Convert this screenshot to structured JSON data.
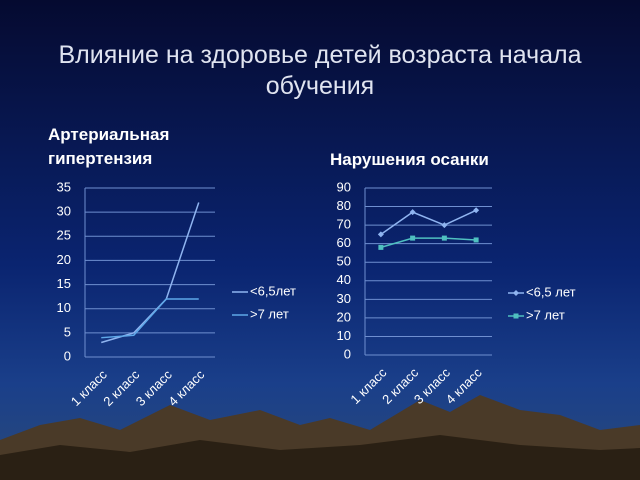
{
  "title": "Влияние на здоровье детей  возраста начала обучения",
  "chart_data": [
    {
      "type": "line",
      "title": "Артериальная гипертензия",
      "categories": [
        "1 класс",
        "2 класс",
        "3 класс",
        "4 класс"
      ],
      "series": [
        {
          "name": "<6,5лет",
          "color": "#8fb4f0",
          "values": [
            3,
            5,
            12,
            32
          ]
        },
        {
          "name": ">7 лет",
          "color": "#5fa8e8",
          "values": [
            4,
            4.5,
            12,
            12
          ]
        }
      ],
      "ylim": [
        0,
        35
      ],
      "yticks": [
        0,
        5,
        10,
        15,
        20,
        25,
        30,
        35
      ],
      "grid": true,
      "legend": "right"
    },
    {
      "type": "line",
      "title": "Нарушения осанки",
      "categories": [
        "1 класс",
        "2 класс",
        "3 класс",
        "4 класс"
      ],
      "series": [
        {
          "name": "<6,5 лет",
          "color": "#8fb4f0",
          "marker": "diamond",
          "values": [
            65,
            77,
            70,
            78
          ]
        },
        {
          "name": ">7 лет",
          "color": "#4fc0c0",
          "marker": "square",
          "values": [
            58,
            63,
            63,
            62
          ]
        }
      ],
      "ylim": [
        0,
        90
      ],
      "yticks": [
        0,
        10,
        20,
        30,
        40,
        50,
        60,
        70,
        80,
        90
      ],
      "grid": true,
      "legend": "right"
    }
  ]
}
